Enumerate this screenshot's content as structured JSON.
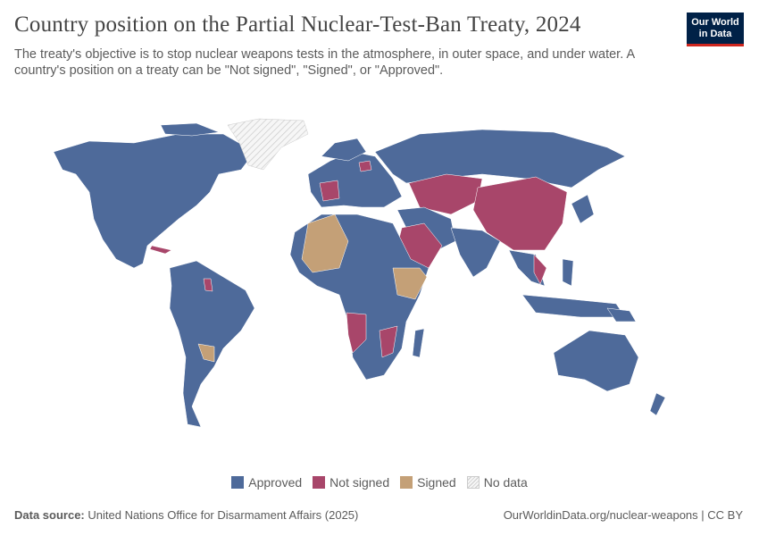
{
  "header": {
    "title": "Country position on the Partial Nuclear-Test-Ban Treaty, 2024",
    "subtitle": "The treaty's objective is to stop nuclear weapons tests in the atmosphere, in outer space, and under water. A country's position on a treaty can be \"Not signed\", \"Signed\", or \"Approved\".",
    "logo": "Our World in Data"
  },
  "colors": {
    "approved": "#4e6a9a",
    "not_signed": "#a8466a",
    "signed": "#c4a077",
    "no_data": "#f2f2f2"
  },
  "legend": [
    {
      "label": "Approved",
      "key": "approved"
    },
    {
      "label": "Not signed",
      "key": "not_signed"
    },
    {
      "label": "Signed",
      "key": "signed"
    },
    {
      "label": "No data",
      "key": "no_data"
    }
  ],
  "map_data": {
    "year": 2024,
    "not_signed_examples": [
      "France",
      "China",
      "Saudi Arabia",
      "Kazakhstan",
      "Vietnam",
      "Cuba",
      "Angola",
      "Mozambique",
      "Guyana"
    ],
    "signed_examples": [
      "Algeria",
      "Mali",
      "Burkina Faso",
      "Somalia",
      "Ethiopia",
      "Paraguay",
      "Cameroon"
    ],
    "no_data_examples": [
      "Greenland"
    ]
  },
  "footer": {
    "source_label": "Data source:",
    "source": "United Nations Office for Disarmament Affairs (2025)",
    "url": "OurWorldinData.org/nuclear-weapons | CC BY"
  }
}
